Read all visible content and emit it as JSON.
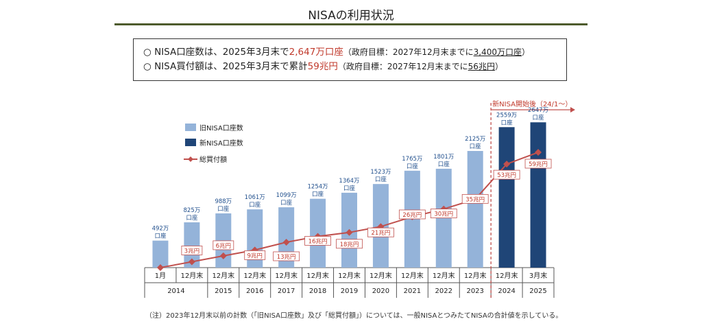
{
  "page": {
    "title": "NISAの利用状況",
    "summary": {
      "line1": {
        "bullet": "○",
        "text": "NISA口座数は、2025年3月末で",
        "highlight": "2,647万口座",
        "note_prefix": "（政府目標：2027年12月末までに",
        "note_target": "3,400万口座",
        "note_suffix": "）"
      },
      "line2": {
        "bullet": "○",
        "text": "NISA買付額は、2025年3月末で累計",
        "highlight": "59兆円",
        "note_prefix": "（政府目標：2027年12月末までに",
        "note_target": "56兆円",
        "note_suffix": "）"
      }
    },
    "footnote": "（注）2023年12月末以前の計数（「旧NISA口座数」及び「総買付額」）については、一般NISAとつみたてNISAの合計値を示している。"
  },
  "colors": {
    "old_bar": "#94b3d9",
    "new_bar": "#1f4577",
    "line": "#c0504d",
    "label_blue": "#1f4e8c",
    "label_red": "#c0392b",
    "title_rule": "#4e5b2c"
  },
  "chart_data": {
    "type": "bar",
    "categories": [
      "1月",
      "12月末",
      "12月末",
      "12月末",
      "12月末",
      "12月末",
      "12月末",
      "12月末",
      "12月末",
      "12月末",
      "12月末",
      "12月末",
      "3月末"
    ],
    "year_groups": [
      {
        "label": "2014",
        "span": 2
      },
      {
        "label": "2015",
        "span": 1
      },
      {
        "label": "2016",
        "span": 1
      },
      {
        "label": "2017",
        "span": 1
      },
      {
        "label": "2018",
        "span": 1
      },
      {
        "label": "2019",
        "span": 1
      },
      {
        "label": "2020",
        "span": 1
      },
      {
        "label": "2021",
        "span": 1
      },
      {
        "label": "2022",
        "span": 1
      },
      {
        "label": "2023",
        "span": 1
      },
      {
        "label": "2024",
        "span": 1
      },
      {
        "label": "2025",
        "span": 1
      }
    ],
    "series": [
      {
        "name": "旧NISA口座数",
        "kind": "bar",
        "values": [
          492,
          825,
          988,
          1061,
          1099,
          1254,
          1364,
          1523,
          1765,
          1801,
          2125,
          null,
          null
        ]
      },
      {
        "name": "新NISA口座数",
        "kind": "bar",
        "values": [
          null,
          null,
          null,
          null,
          null,
          null,
          null,
          null,
          null,
          null,
          null,
          2559,
          2647
        ]
      },
      {
        "name": "総買付額",
        "kind": "line",
        "values": [
          0,
          3,
          6,
          9,
          13,
          16,
          18,
          21,
          26,
          30,
          35,
          53,
          59
        ]
      }
    ],
    "bar_labels": [
      "492万\n口座",
      "825万\n口座",
      "988万\n口座",
      "1061万\n口座",
      "1099万\n口座",
      "1254万\n口座",
      "1364万\n口座",
      "1523万\n口座",
      "1765万\n口座",
      "1801万\n口座",
      "2125万\n口座",
      "2559万\n口座",
      "2647万\n口座"
    ],
    "line_labels": [
      null,
      "3兆円",
      "6兆円",
      "9兆円",
      "13兆円",
      "16兆円",
      "18兆円",
      "21兆円",
      "26兆円",
      "30兆円",
      "35兆円",
      "53兆円",
      "59兆円"
    ],
    "legend": [
      "旧NISA口座数",
      "新NISA口座数",
      "総買付額"
    ],
    "annotation": "新NISA開始後（24/1～）",
    "bar_ylim": [
      0,
      3000
    ],
    "line_ylim": [
      0,
      85
    ]
  }
}
